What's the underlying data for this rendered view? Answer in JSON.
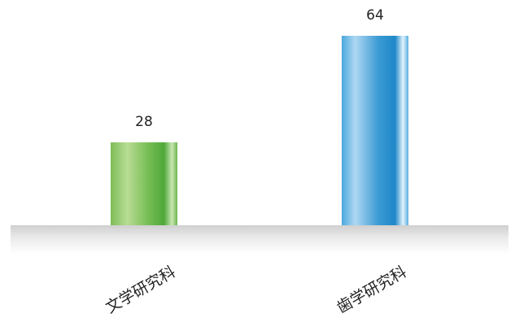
{
  "chart_data": {
    "type": "bar",
    "categories": [
      "文学研究科",
      "歯学研究科"
    ],
    "values": [
      28,
      64
    ],
    "data_labels": [
      "28",
      "64"
    ],
    "colors": [
      "#5cb646",
      "#2a93d0"
    ],
    "ylim": [
      0,
      64
    ],
    "grid": false,
    "legend": "none",
    "title": "",
    "xlabel": "",
    "ylabel": ""
  }
}
